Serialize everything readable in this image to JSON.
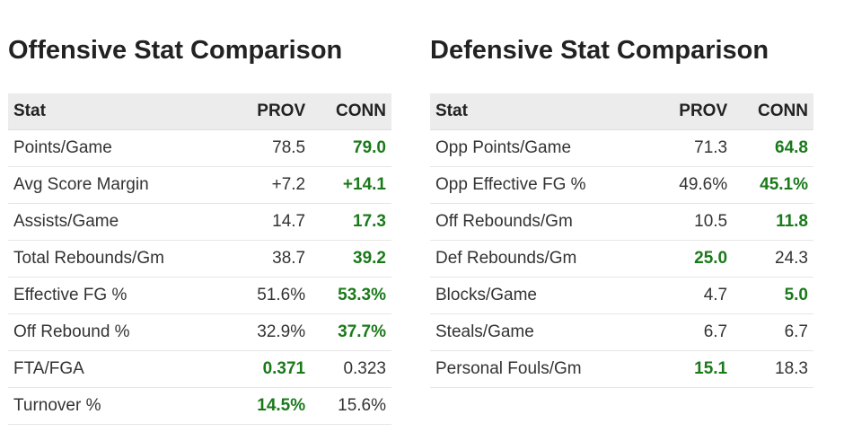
{
  "offensive": {
    "title": "Offensive Stat Comparison",
    "columns": [
      "Stat",
      "PROV",
      "CONN"
    ],
    "rows": [
      {
        "stat": "Points/Game",
        "prov": "78.5",
        "conn": "79.0",
        "best": "conn"
      },
      {
        "stat": "Avg Score Margin",
        "prov": "+7.2",
        "conn": "+14.1",
        "best": "conn"
      },
      {
        "stat": "Assists/Game",
        "prov": "14.7",
        "conn": "17.3",
        "best": "conn"
      },
      {
        "stat": "Total Rebounds/Gm",
        "prov": "38.7",
        "conn": "39.2",
        "best": "conn"
      },
      {
        "stat": "Effective FG %",
        "prov": "51.6%",
        "conn": "53.3%",
        "best": "conn"
      },
      {
        "stat": "Off Rebound %",
        "prov": "32.9%",
        "conn": "37.7%",
        "best": "conn"
      },
      {
        "stat": "FTA/FGA",
        "prov": "0.371",
        "conn": "0.323",
        "best": "prov"
      },
      {
        "stat": "Turnover %",
        "prov": "14.5%",
        "conn": "15.6%",
        "best": "prov"
      }
    ]
  },
  "defensive": {
    "title": "Defensive Stat Comparison",
    "columns": [
      "Stat",
      "PROV",
      "CONN"
    ],
    "rows": [
      {
        "stat": "Opp Points/Game",
        "prov": "71.3",
        "conn": "64.8",
        "best": "conn"
      },
      {
        "stat": "Opp Effective FG %",
        "prov": "49.6%",
        "conn": "45.1%",
        "best": "conn"
      },
      {
        "stat": "Off Rebounds/Gm",
        "prov": "10.5",
        "conn": "11.8",
        "best": "conn"
      },
      {
        "stat": "Def Rebounds/Gm",
        "prov": "25.0",
        "conn": "24.3",
        "best": "prov"
      },
      {
        "stat": "Blocks/Game",
        "prov": "4.7",
        "conn": "5.0",
        "best": "conn"
      },
      {
        "stat": "Steals/Game",
        "prov": "6.7",
        "conn": "6.7",
        "best": "none"
      },
      {
        "stat": "Personal Fouls/Gm",
        "prov": "15.1",
        "conn": "18.3",
        "best": "prov"
      }
    ]
  },
  "colors": {
    "highlight": "#1a7a1a",
    "header_bg": "#ececec",
    "text": "#222222"
  }
}
